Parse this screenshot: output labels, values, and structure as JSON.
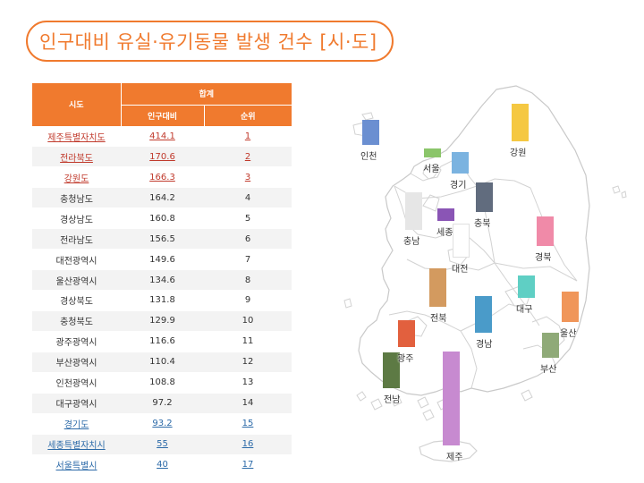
{
  "title": "인구대비 유실·유기동물 발생 건수 [시·도]",
  "table": {
    "header_region": "시도",
    "header_total": "합계",
    "header_per_capita": "인구대비",
    "header_rank": "순위",
    "rows": [
      {
        "region": "제주특별자치도",
        "value": "414.1",
        "rank": "1"
      },
      {
        "region": "전라북도",
        "value": "170.6",
        "rank": "2"
      },
      {
        "region": "강원도",
        "value": "166.3",
        "rank": "3"
      },
      {
        "region": "충청남도",
        "value": "164.2",
        "rank": "4"
      },
      {
        "region": "경상남도",
        "value": "160.8",
        "rank": "5"
      },
      {
        "region": "전라남도",
        "value": "156.5",
        "rank": "6"
      },
      {
        "region": "대전광역시",
        "value": "149.6",
        "rank": "7"
      },
      {
        "region": "울산광역시",
        "value": "134.6",
        "rank": "8"
      },
      {
        "region": "경상북도",
        "value": "131.8",
        "rank": "9"
      },
      {
        "region": "충청북도",
        "value": "129.9",
        "rank": "10"
      },
      {
        "region": "광주광역시",
        "value": "116.6",
        "rank": "11"
      },
      {
        "region": "부산광역시",
        "value": "110.4",
        "rank": "12"
      },
      {
        "region": "인천광역시",
        "value": "108.8",
        "rank": "13"
      },
      {
        "region": "대구광역시",
        "value": "97.2",
        "rank": "14"
      },
      {
        "region": "경기도",
        "value": "93.2",
        "rank": "15"
      },
      {
        "region": "세종특별자치시",
        "value": "55",
        "rank": "16"
      },
      {
        "region": "서울특별시",
        "value": "40",
        "rank": "17"
      }
    ]
  },
  "map": {
    "regions": [
      {
        "name": "제주",
        "value": 414.1,
        "color": "#c78ad0"
      },
      {
        "name": "전북",
        "value": 170.6,
        "color": "#d39a5f"
      },
      {
        "name": "강원",
        "value": 166.3,
        "color": "#f5c842"
      },
      {
        "name": "충남",
        "value": 164.2,
        "color": "#e6e6e6"
      },
      {
        "name": "경남",
        "value": 160.8,
        "color": "#4a9bc9"
      },
      {
        "name": "전남",
        "value": 156.5,
        "color": "#5d7a44"
      },
      {
        "name": "대전",
        "value": 149.6,
        "color": "#ffffff"
      },
      {
        "name": "울산",
        "value": 134.6,
        "color": "#f0965a"
      },
      {
        "name": "경북",
        "value": 131.8,
        "color": "#f08aa8"
      },
      {
        "name": "충북",
        "value": 129.9,
        "color": "#616c7e"
      },
      {
        "name": "광주",
        "value": 116.6,
        "color": "#e2603e"
      },
      {
        "name": "부산",
        "value": 110.4,
        "color": "#8faa78"
      },
      {
        "name": "인천",
        "value": 108.8,
        "color": "#6b8fd1"
      },
      {
        "name": "대구",
        "value": 97.2,
        "color": "#5fcfc4"
      },
      {
        "name": "경기",
        "value": 93.2,
        "color": "#7bb3e0"
      },
      {
        "name": "세종",
        "value": 55,
        "color": "#8a55b5"
      },
      {
        "name": "서울",
        "value": 40,
        "color": "#8bc56a"
      }
    ]
  }
}
